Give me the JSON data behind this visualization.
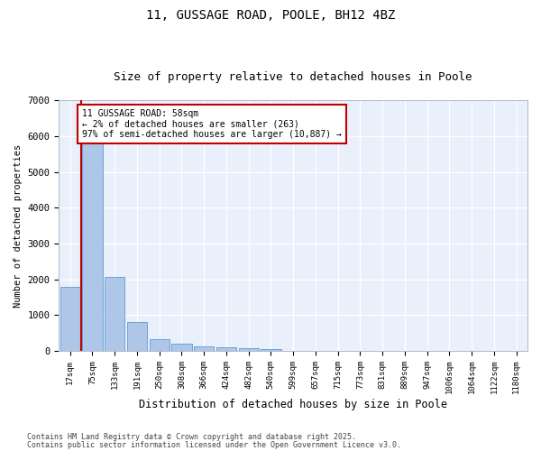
{
  "title1": "11, GUSSAGE ROAD, POOLE, BH12 4BZ",
  "title2": "Size of property relative to detached houses in Poole",
  "xlabel": "Distribution of detached houses by size in Poole",
  "ylabel": "Number of detached properties",
  "categories": [
    "17sqm",
    "75sqm",
    "133sqm",
    "191sqm",
    "250sqm",
    "308sqm",
    "366sqm",
    "424sqm",
    "482sqm",
    "540sqm",
    "599sqm",
    "657sqm",
    "715sqm",
    "773sqm",
    "831sqm",
    "889sqm",
    "947sqm",
    "1006sqm",
    "1064sqm",
    "1122sqm",
    "1180sqm"
  ],
  "values": [
    1780,
    5840,
    2080,
    820,
    340,
    195,
    120,
    100,
    90,
    65,
    0,
    0,
    0,
    0,
    0,
    0,
    0,
    0,
    0,
    0,
    0
  ],
  "bar_color": "#aec6e8",
  "bar_edge_color": "#5b9bd5",
  "highlight_color": "#c00000",
  "annotation_text": "11 GUSSAGE ROAD: 58sqm\n← 2% of detached houses are smaller (263)\n97% of semi-detached houses are larger (10,887) →",
  "annotation_box_color": "white",
  "annotation_box_edge": "#c00000",
  "ylim": [
    0,
    7000
  ],
  "yticks": [
    0,
    1000,
    2000,
    3000,
    4000,
    5000,
    6000,
    7000
  ],
  "bg_color": "#eaf0fb",
  "grid_color": "white",
  "title_fontsize": 10,
  "subtitle_fontsize": 9,
  "footer_line1": "Contains HM Land Registry data © Crown copyright and database right 2025.",
  "footer_line2": "Contains public sector information licensed under the Open Government Licence v3.0."
}
